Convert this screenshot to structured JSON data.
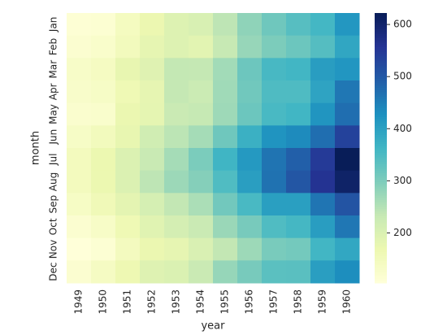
{
  "chart_data": {
    "type": "heatmap",
    "xlabel": "year",
    "ylabel": "month",
    "x": [
      "1949",
      "1950",
      "1951",
      "1952",
      "1953",
      "1954",
      "1955",
      "1956",
      "1957",
      "1958",
      "1959",
      "1960"
    ],
    "y": [
      "Jan",
      "Feb",
      "Mar",
      "Apr",
      "May",
      "Jun",
      "Jul",
      "Aug",
      "Sep",
      "Oct",
      "Nov",
      "Dec"
    ],
    "values": [
      [
        112,
        115,
        145,
        171,
        196,
        204,
        242,
        284,
        315,
        340,
        360,
        417
      ],
      [
        118,
        126,
        150,
        180,
        196,
        188,
        233,
        277,
        301,
        318,
        342,
        391
      ],
      [
        132,
        141,
        178,
        193,
        236,
        235,
        267,
        317,
        356,
        362,
        406,
        419
      ],
      [
        129,
        135,
        163,
        181,
        235,
        227,
        269,
        313,
        348,
        348,
        396,
        461
      ],
      [
        121,
        125,
        172,
        183,
        229,
        234,
        270,
        318,
        355,
        363,
        420,
        472
      ],
      [
        135,
        149,
        178,
        218,
        243,
        264,
        315,
        374,
        422,
        435,
        472,
        535
      ],
      [
        148,
        170,
        199,
        230,
        264,
        302,
        364,
        413,
        465,
        491,
        548,
        622
      ],
      [
        148,
        170,
        199,
        242,
        272,
        293,
        347,
        405,
        467,
        505,
        559,
        606
      ],
      [
        136,
        158,
        184,
        209,
        237,
        259,
        312,
        355,
        404,
        404,
        463,
        508
      ],
      [
        119,
        133,
        162,
        191,
        211,
        229,
        274,
        306,
        347,
        359,
        407,
        461
      ],
      [
        104,
        114,
        146,
        172,
        180,
        203,
        237,
        271,
        305,
        310,
        362,
        390
      ],
      [
        118,
        140,
        166,
        194,
        201,
        229,
        278,
        306,
        336,
        337,
        405,
        432
      ]
    ],
    "colormap": "YlGnBu",
    "zlim": [
      104,
      622
    ],
    "zticks": [
      200,
      300,
      400,
      500,
      600
    ]
  }
}
